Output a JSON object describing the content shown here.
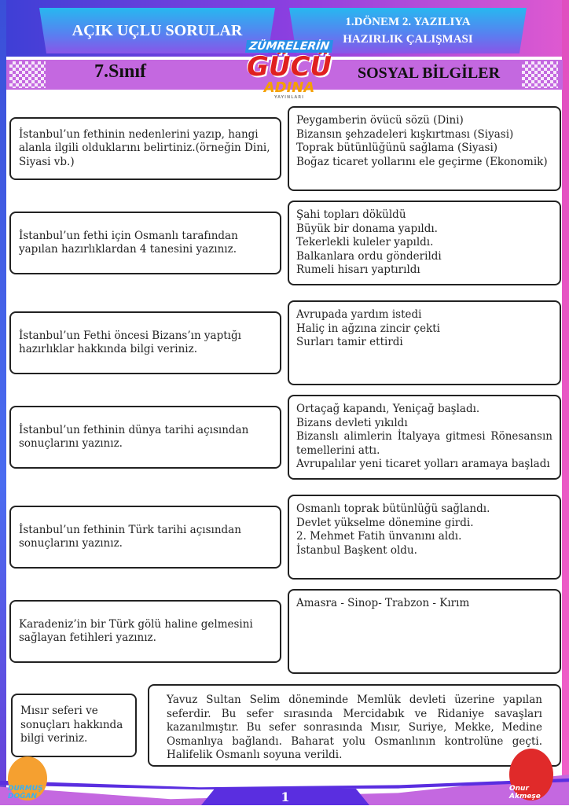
{
  "header": {
    "left_title": "AÇIK UÇLU SORULAR",
    "right_title_line1": "1.DÖNEM 2. YAZILIYA",
    "right_title_line2": "HAZIRLIK ÇALIŞMASI",
    "grade": "7.Sınıf",
    "subject": "SOSYAL BİLGİLER",
    "logo": {
      "line1": "ZÜMRELERİN",
      "line2": "GÜCÜ",
      "line3": "ADINA",
      "line4": "YAYINLARI"
    }
  },
  "items": [
    {
      "question": "İstanbul’un fethinin nedenlerini yazıp, hangi alanla ilgili olduklarını belirtiniz.(örneğin Dini, Siyasi vb.)",
      "answer": [
        "Peygamberin övücü sözü (Dini)",
        "Bizansın şehzadeleri kışkırtması (Siyasi)",
        "Toprak bütünlüğünü sağlama (Siyasi)",
        "Boğaz ticaret yollarını ele geçirme (Ekonomik)"
      ]
    },
    {
      "question": "İstanbul’un fethi için Osmanlı tarafından yapılan hazırlıklardan 4 tanesini yazınız.",
      "answer": [
        "Şahi topları döküldü",
        "Büyük bir donama yapıldı.",
        "Tekerlekli kuleler yapıldı.",
        "Balkanlara ordu gönderildi",
        "Rumeli hisarı yaptırıldı"
      ]
    },
    {
      "question": "İstanbul’un Fethi öncesi Bizans’ın yaptığı hazırlıklar hakkında bilgi veriniz.",
      "answer": [
        "Avrupada yardım istedi",
        "Haliç in ağzına zincir çekti",
        "Surları tamir ettirdi"
      ]
    },
    {
      "question": "İstanbul’un fethinin dünya tarihi açısından sonuçlarını yazınız.",
      "answer": [
        "Ortaçağ kapandı, Yeniçağ başladı.",
        "Bizans devleti yıkıldı",
        "Bizanslı alimlerin İtalyaya gitmesi Rönesansın temellerini attı.",
        "Avrupalılar yeni ticaret yolları aramaya başladı"
      ]
    },
    {
      "question": "İstanbul’un fethinin Türk tarihi açısından sonuçlarını yazınız.",
      "answer": [
        "Osmanlı toprak bütünlüğü sağlandı.",
        "Devlet yükselme dönemine girdi.",
        "2. Mehmet Fatih ünvanını aldı.",
        "İstanbul Başkent oldu."
      ]
    },
    {
      "question": "Karadeniz’in bir Türk gölü haline gelmesini sağlayan fetihleri yazınız.",
      "answer": [
        "Amasra -  Sinop- Trabzon - Kırım"
      ]
    },
    {
      "question": "Mısır seferi ve sonuçları hakkında bilgi veriniz.",
      "answer": [
        "Yavuz Sultan Selim döneminde Memlük devleti üzerine yapılan seferdir. Bu sefer sırasında Mercidabık ve Ridaniye savaşları kazanılmıştır. Bu sefer sonrasında Mısır, Suriye, Mekke, Medine Osmanlıya bağlandı. Baharat yolu Osmanlının kontrolüne geçti. Halifelik Osmanlı soyuna verildi."
      ]
    }
  ],
  "footer": {
    "page_number": "1",
    "left_author": "DURMUŞ DOĞAN",
    "right_author": "Onur Akmeşe"
  },
  "colors": {
    "banner": "#c468e0",
    "header_box": "#27b8f0",
    "footer_band": "#5a2ee0"
  }
}
